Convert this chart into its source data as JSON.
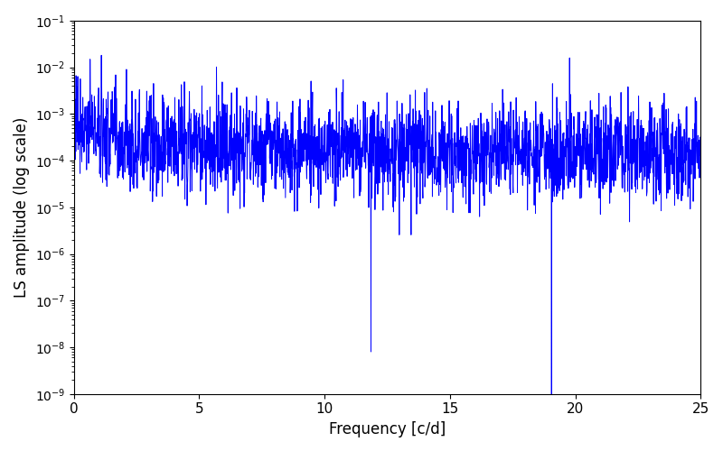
{
  "xlabel": "Frequency [c/d]",
  "ylabel": "LS amplitude (log scale)",
  "xlim": [
    0,
    25
  ],
  "ylim": [
    1e-09,
    0.1
  ],
  "xticks": [
    0,
    5,
    10,
    15,
    20,
    25
  ],
  "line_color": "#0000FF",
  "line_width": 0.7,
  "figsize": [
    8.0,
    5.0
  ],
  "dpi": 100,
  "n_points": 2500,
  "freq_max": 25.0,
  "seed": 77,
  "background_color": "#ffffff",
  "xlabel_fontsize": 12,
  "ylabel_fontsize": 12,
  "tick_fontsize": 11,
  "base_level": 0.00012,
  "envelope_decay": 2.5,
  "envelope_power": 0.8,
  "log_noise_std": 1.2,
  "null1_freq": 11.85,
  "null1_val": 8e-09,
  "null2_freq": 19.05,
  "null2_val": 9e-10,
  "peak1_freq": 1.1,
  "peak1_val": 0.018,
  "peak2_freq": 2.1,
  "peak2_val": 0.009,
  "peak3_freq": 4.6,
  "peak3_val": 0.0012,
  "peak4_freq": 7.0,
  "peak4_val": 0.0012
}
